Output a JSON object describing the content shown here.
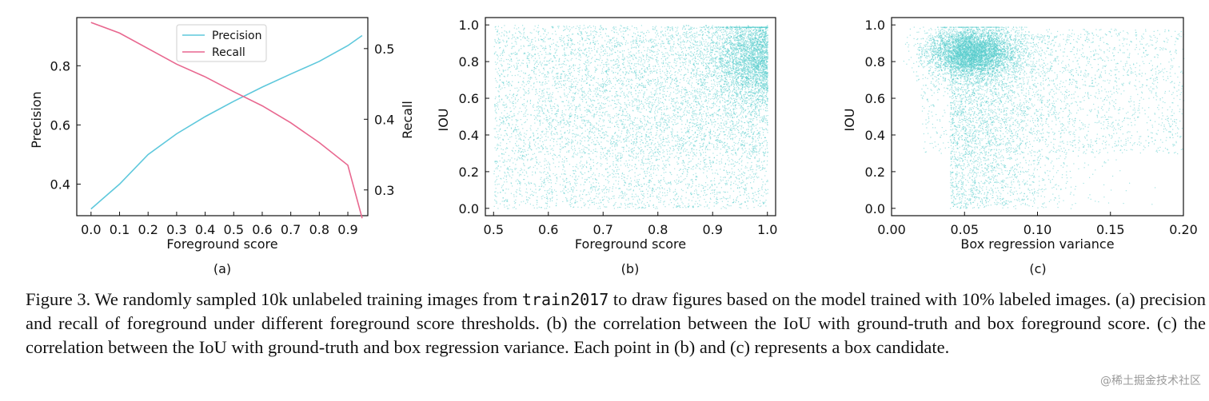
{
  "colors": {
    "precision": "#5ec8dc",
    "recall": "#e8678f",
    "scatter": "#55cccc",
    "axis": "#111111"
  },
  "chart_data": [
    {
      "type": "line",
      "panel_label": "(a)",
      "xlabel": "Foreground score",
      "ylabel_left": "Precision",
      "ylabel_right": "Recall",
      "xlim": [
        -0.05,
        0.97
      ],
      "ylim_left": [
        0.315,
        0.925
      ],
      "ylim_right": [
        0.25,
        0.55
      ],
      "xticks": [
        "0.0",
        "0.1",
        "0.2",
        "0.3",
        "0.4",
        "0.5",
        "0.6",
        "0.7",
        "0.8",
        "0.9"
      ],
      "yticks_left": [
        "0.4",
        "0.6",
        "0.8"
      ],
      "yticks_right": [
        "0.3",
        "0.4",
        "0.5"
      ],
      "legend": "top-center",
      "x": [
        0.0,
        0.1,
        0.2,
        0.3,
        0.4,
        0.5,
        0.6,
        0.7,
        0.8,
        0.9,
        0.95
      ],
      "series": [
        {
          "name": "Precision",
          "axis": "left",
          "values": [
            0.316,
            0.4,
            0.5,
            0.57,
            0.628,
            0.68,
            0.728,
            0.772,
            0.815,
            0.868,
            0.902
          ]
        },
        {
          "name": "Recall",
          "axis": "right",
          "values": [
            0.537,
            0.522,
            0.5,
            0.478,
            0.46,
            0.439,
            0.419,
            0.395,
            0.367,
            0.335,
            0.26
          ]
        }
      ]
    },
    {
      "type": "scatter",
      "panel_label": "(b)",
      "xlabel": "Foreground score",
      "ylabel": "IOU",
      "xlim": [
        0.485,
        1.015
      ],
      "ylim": [
        -0.04,
        1.04
      ],
      "xticks": [
        "0.5",
        "0.6",
        "0.7",
        "0.8",
        "0.9",
        "1.0"
      ],
      "yticks": [
        "0.0",
        "0.2",
        "0.4",
        "0.6",
        "0.8",
        "1.0"
      ],
      "point_count": 10000,
      "density": "uniform over x 0.5-1.0 and y 0.0-1.0, densest cluster near x 1.0, y 0.7-0.95"
    },
    {
      "type": "scatter",
      "panel_label": "(c)",
      "xlabel": "Box regression variance",
      "ylabel": "IOU",
      "xlim": [
        0.0,
        0.2
      ],
      "ylim": [
        -0.04,
        1.04
      ],
      "xticks": [
        "0.00",
        "0.05",
        "0.10",
        "0.15",
        "0.20"
      ],
      "yticks": [
        "0.0",
        "0.2",
        "0.4",
        "0.6",
        "0.8",
        "1.0"
      ],
      "point_count": 10000,
      "density": "dense cluster near x 0.05, y 0.85, spreading to x 0.20 and down to y 0.0"
    }
  ],
  "caption": {
    "before_code": "Figure 3. We randomly sampled 10k unlabeled training images from ",
    "code": "train2017",
    "after_code": " to draw figures based on the model trained with 10% labeled images. (a) precision and recall of foreground under different foreground score thresholds. (b) the correlation between the IoU with ground-truth and box foreground score. (c) the correlation between the IoU with ground-truth and box regression variance. Each point in (b) and (c) represents a box candidate."
  },
  "watermark": "@稀土掘金技术社区"
}
